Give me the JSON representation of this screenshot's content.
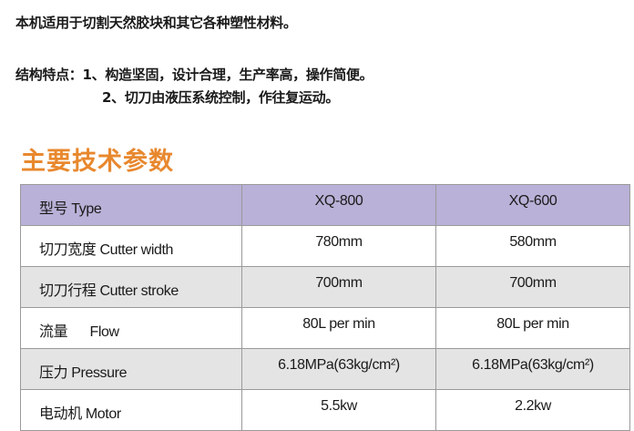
{
  "intro": "本机适用于切割天然胶块和其它各种塑性材料。",
  "features": {
    "line1": "结构特点：1、构造坚固，设计合理，生产率高，操作简便。",
    "line2": "2、切刀由液压系统控制，作往复运动。"
  },
  "heading": "主要技术参数",
  "colors": {
    "heading": "#e8882e",
    "header_row": "#b9b1d7",
    "alt_row": "#e4e4e4"
  },
  "table": {
    "header": {
      "label": "型号 Type",
      "models": [
        "XQ-800",
        "XQ-600"
      ]
    },
    "rows": [
      {
        "label": "切刀宽度 Cutter width",
        "values": [
          "780mm",
          "580mm"
        ]
      },
      {
        "label": "切刀行程 Cutter stroke",
        "values": [
          "700mm",
          "700mm"
        ]
      },
      {
        "label": "流量      Flow",
        "values": [
          "80L per min",
          "80L per min"
        ]
      },
      {
        "label": "压力 Pressure",
        "values": [
          "6.18MPa(63kg/cm²)",
          "6.18MPa(63kg/cm²)"
        ]
      },
      {
        "label": "电动机 Motor",
        "values": [
          "5.5kw",
          "2.2kw"
        ]
      }
    ]
  }
}
